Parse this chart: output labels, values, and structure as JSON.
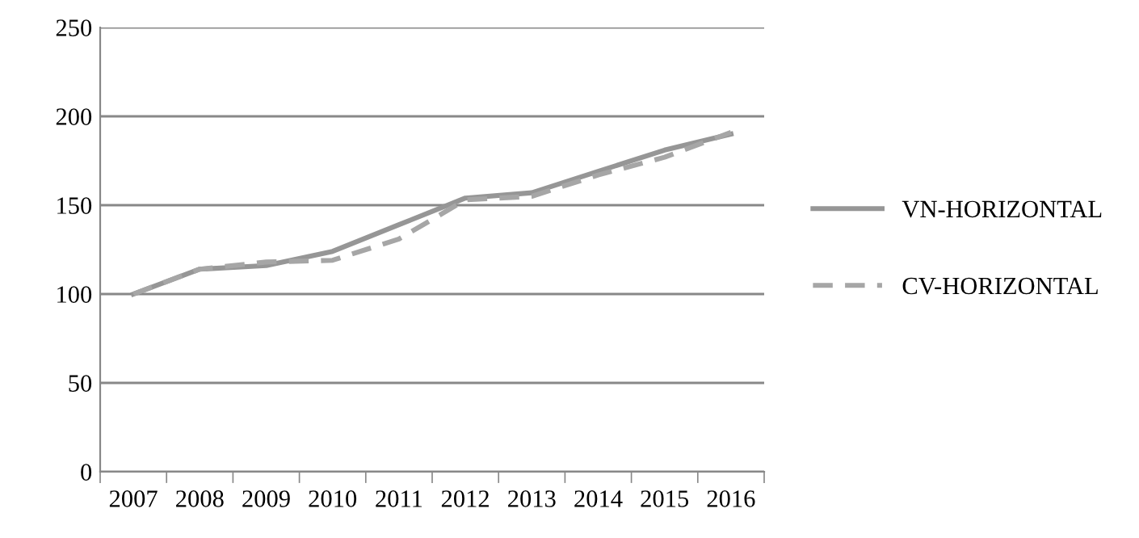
{
  "chart_data": {
    "type": "line",
    "categories": [
      "2007",
      "2008",
      "2009",
      "2010",
      "2011",
      "2012",
      "2013",
      "2014",
      "2015",
      "2016"
    ],
    "series": [
      {
        "name": "VN-HORIZONTAL",
        "color": "#969696",
        "line_style": "solid",
        "values": [
          100,
          114,
          116,
          124,
          139,
          154,
          157,
          169,
          181,
          190
        ]
      },
      {
        "name": "CV-HORIZONTAL",
        "color": "#a6a6a6",
        "line_style": "dashed",
        "values": [
          100,
          114,
          118,
          119,
          131,
          153,
          155,
          167,
          177,
          191
        ]
      }
    ],
    "ylim": [
      0,
      250
    ],
    "yticks": [
      0,
      50,
      100,
      150,
      200,
      250
    ],
    "grid": "y",
    "legend": "right",
    "marker": "none"
  }
}
